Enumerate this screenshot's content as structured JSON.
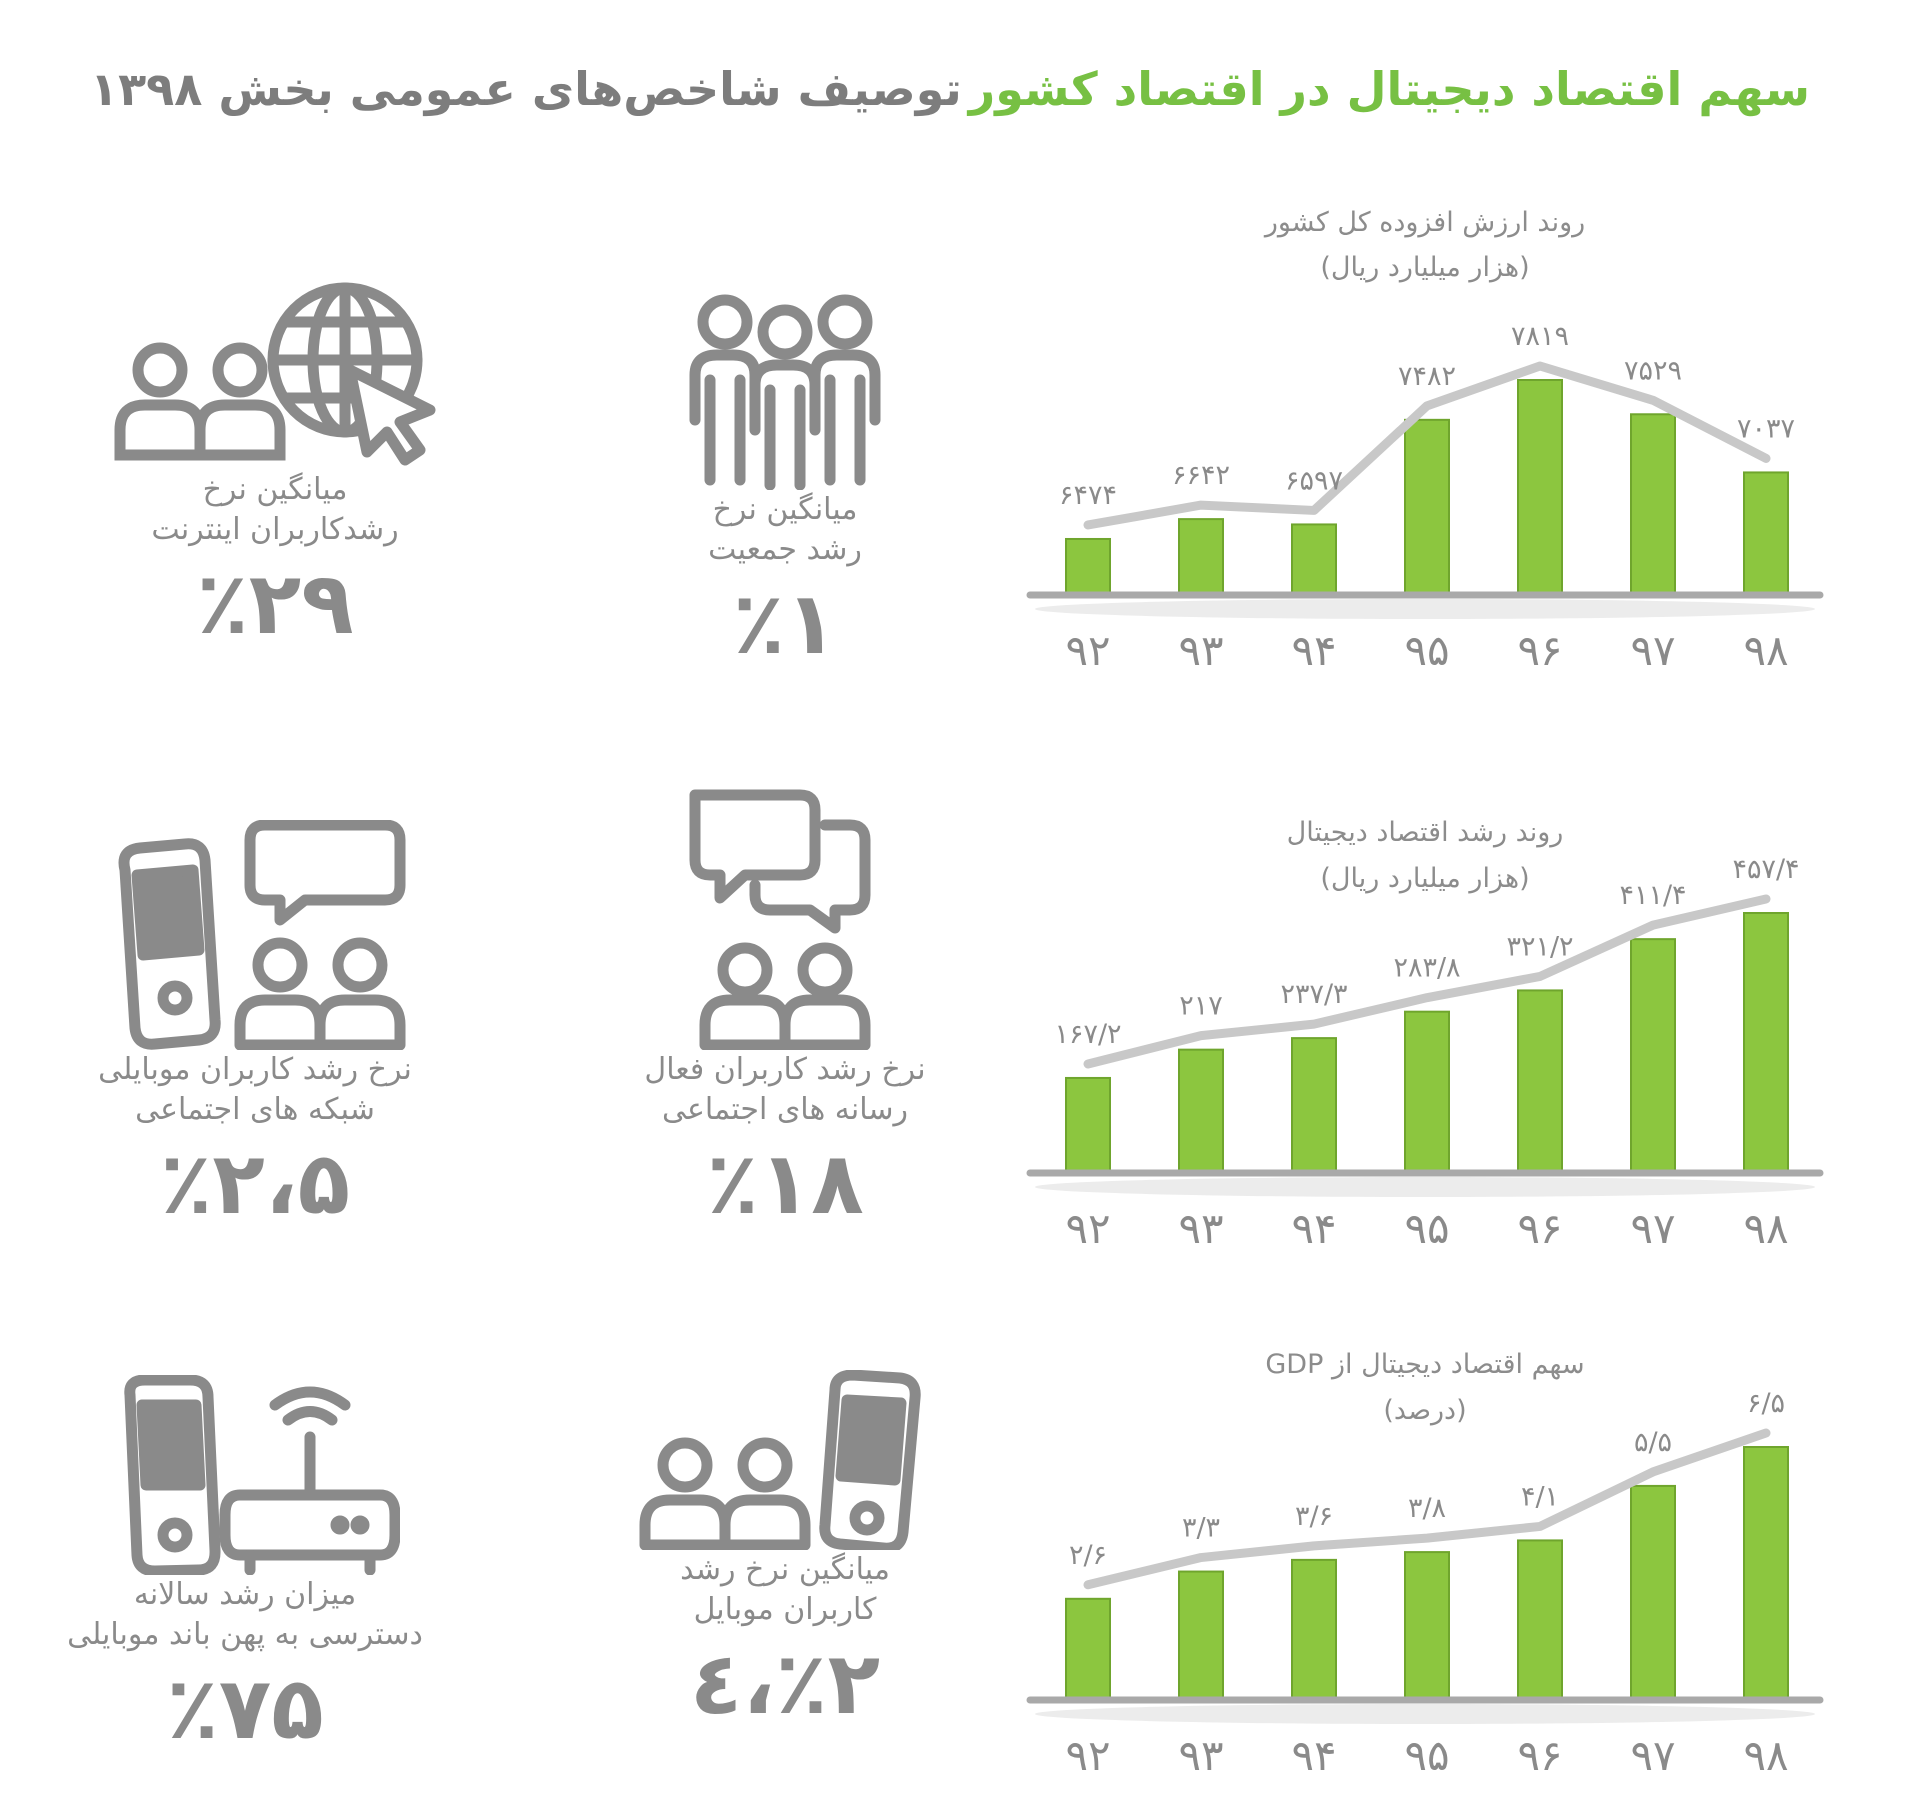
{
  "header": {
    "title_right": "سهم اقتصاد دیجیتال در اقتصاد کشور",
    "title_left": "توصیف شاخص‌های عمومی بخش ۱۳۹۸"
  },
  "colors": {
    "bar": "#8cc63f",
    "bar_edge": "#6fa52d",
    "line": "#c8c8c8",
    "axis": "#a9a9a9",
    "text": "#8a8a8a",
    "accent": "#77c043"
  },
  "chart_data": [
    {
      "type": "bar",
      "title": "روند ارزش افزوده کل کشور",
      "subtitle": "(هزار میلیارد ریال)",
      "categories": [
        "۹۲",
        "۹۳",
        "۹۴",
        "۹۵",
        "۹۶",
        "۹۷",
        "۹۸"
      ],
      "values": [
        6474,
        6642,
        6597,
        7482,
        7819,
        7529,
        7037
      ],
      "value_labels": [
        "۶۴۷۴",
        "۶۶۴۲",
        "۶۵۹۷",
        "۷۴۸۲",
        "۷۸۱۹",
        "۷۵۲۹",
        "۷۰۳۷"
      ],
      "overlay_line": true
    },
    {
      "type": "bar",
      "title": "روند رشد اقتصاد دیجیتال",
      "subtitle": "(هزار میلیارد ریال)",
      "categories": [
        "۹۲",
        "۹۳",
        "۹۴",
        "۹۵",
        "۹۶",
        "۹۷",
        "۹۸"
      ],
      "values": [
        167.2,
        217,
        237.3,
        283.8,
        321.2,
        411.4,
        457.4
      ],
      "value_labels": [
        "۱۶۷/۲",
        "۲۱۷",
        "۲۳۷/۳",
        "۲۸۳/۸",
        "۳۲۱/۲",
        "۴۱۱/۴",
        "۴۵۷/۴"
      ],
      "overlay_line": true
    },
    {
      "type": "bar",
      "title": "سهم اقتصاد دیجیتال از GDP",
      "subtitle": "(درصد)",
      "categories": [
        "۹۲",
        "۹۳",
        "۹۴",
        "۹۵",
        "۹۶",
        "۹۷",
        "۹۸"
      ],
      "values": [
        2.6,
        3.3,
        3.6,
        3.8,
        4.1,
        5.5,
        6.5
      ],
      "value_labels": [
        "۲/۶",
        "۳/۳",
        "۳/۶",
        "۳/۸",
        "۴/۱",
        "۵/۵",
        "۶/۵"
      ],
      "overlay_line": true
    }
  ],
  "stats": [
    {
      "icon": "population-icon",
      "label": "میانگین نرخ\nرشد جمعیت",
      "value": "٪۱"
    },
    {
      "icon": "internet-users-icon",
      "label": "میانگین نرخ\nرشدکاربران اینترنت",
      "value": "٪۲۹"
    },
    {
      "icon": "chat-users-icon",
      "label": "نرخ رشد کاربران فعال\nرسانه های اجتماعی",
      "value": "٪۱۸"
    },
    {
      "icon": "mobile-chat-users-icon",
      "label": "نرخ رشد کاربران موبایلی\nشبکه های اجتماعی",
      "value": "٪۲،۵"
    },
    {
      "icon": "mobile-users-icon",
      "label": "میانگین نرخ رشد\nکاربران موبایل",
      "value": "٪۲،٤"
    },
    {
      "icon": "mobile-broadband-icon",
      "label": "میزان رشد سالانه\nدسترسی به پهن باند موبایلی",
      "value": "٪۷۵"
    }
  ]
}
